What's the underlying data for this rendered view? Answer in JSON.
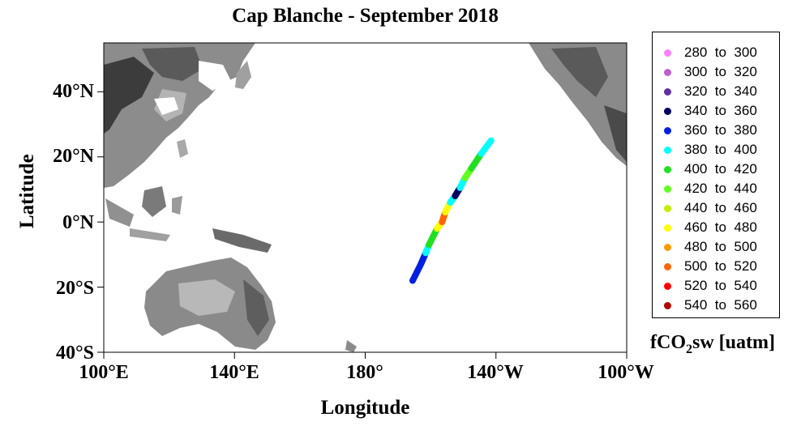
{
  "title": "Cap Blanche - September 2018",
  "ylabel": "Latitude",
  "xlabel": "Longitude",
  "yticks": [
    "40°N",
    "20°N",
    "0°N",
    "20°S",
    "40°S"
  ],
  "xticks": [
    "100°E",
    "140°E",
    "180°",
    "140°W",
    "100°W"
  ],
  "legend": {
    "unit_prefix": "fCO",
    "unit_sub": "2",
    "unit_suffix": "sw [uatm]",
    "items": [
      {
        "range": "280  to  300",
        "color": "#ff80ff"
      },
      {
        "range": "300  to  320",
        "color": "#c060d0"
      },
      {
        "range": "320  to  340",
        "color": "#6030a0"
      },
      {
        "range": "340  to  360",
        "color": "#000060"
      },
      {
        "range": "360  to  380",
        "color": "#0020e0"
      },
      {
        "range": "380  to  400",
        "color": "#00ffff"
      },
      {
        "range": "400  to  420",
        "color": "#20e020"
      },
      {
        "range": "420  to  440",
        "color": "#60ff20"
      },
      {
        "range": "440  to  460",
        "color": "#c0f000"
      },
      {
        "range": "460  to  480",
        "color": "#ffff00"
      },
      {
        "range": "480  to  500",
        "color": "#ff9900"
      },
      {
        "range": "500  to  520",
        "color": "#ff6600"
      },
      {
        "range": "520  to  540",
        "color": "#ff0000"
      },
      {
        "range": "540  to  560",
        "color": "#b00000"
      }
    ]
  },
  "chart_data": {
    "type": "scatter",
    "title": "Cap Blanche - September 2018",
    "xlabel": "Longitude",
    "ylabel": "Latitude",
    "xlim": [
      100,
      260
    ],
    "ylim": [
      -40,
      55
    ],
    "track": [
      {
        "lon": 194.5,
        "lat": -18.0,
        "band": 4
      },
      {
        "lon": 197.0,
        "lat": -13.0,
        "band": 4
      },
      {
        "lon": 198.5,
        "lat": -9.5,
        "band": 5
      },
      {
        "lon": 199.5,
        "lat": -7.0,
        "band": 6
      },
      {
        "lon": 202.0,
        "lat": -2.0,
        "band": 9
      },
      {
        "lon": 203.5,
        "lat": 0.0,
        "band": 11
      },
      {
        "lon": 204.5,
        "lat": 3.0,
        "band": 9
      },
      {
        "lon": 206.0,
        "lat": 6.0,
        "band": 5
      },
      {
        "lon": 207.5,
        "lat": 8.0,
        "band": 3
      },
      {
        "lon": 209.0,
        "lat": 10.5,
        "band": 5
      },
      {
        "lon": 210.5,
        "lat": 13.5,
        "band": 7
      },
      {
        "lon": 212.5,
        "lat": 16.5,
        "band": 6
      },
      {
        "lon": 215.5,
        "lat": 21.0,
        "band": 5
      },
      {
        "lon": 218.5,
        "lat": 25.0,
        "band": 5
      }
    ]
  }
}
